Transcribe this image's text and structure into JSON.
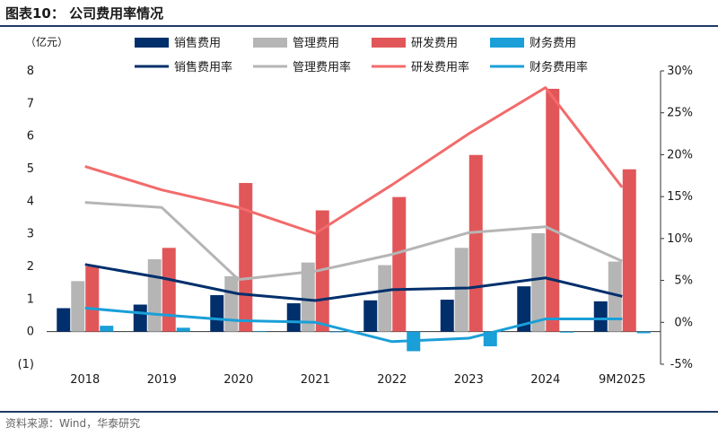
{
  "figure_title": "图表10：  公司费用率情况",
  "source_note": "资料来源：Wind，华泰研究",
  "chart_data": {
    "type": "bar+line",
    "ylabel_left": "（亿元）",
    "categories": [
      "2018",
      "2019",
      "2020",
      "2021",
      "2022",
      "2023",
      "2024",
      "9M2025"
    ],
    "ylim_left": [
      -1,
      8
    ],
    "yticks_left": [
      {
        "value": 8,
        "label": "8"
      },
      {
        "value": 7,
        "label": "7"
      },
      {
        "value": 6,
        "label": "6"
      },
      {
        "value": 5,
        "label": "5"
      },
      {
        "value": 4,
        "label": "4"
      },
      {
        "value": 3,
        "label": "3"
      },
      {
        "value": 2,
        "label": "2"
      },
      {
        "value": 1,
        "label": "1"
      },
      {
        "value": 0,
        "label": "0"
      },
      {
        "value": -1,
        "label": "(1)"
      }
    ],
    "ylim_right": [
      -5,
      30
    ],
    "yticks_right": [
      {
        "value": 30,
        "label": "30%"
      },
      {
        "value": 25,
        "label": "25%"
      },
      {
        "value": 20,
        "label": "20%"
      },
      {
        "value": 15,
        "label": "15%"
      },
      {
        "value": 10,
        "label": "10%"
      },
      {
        "value": 5,
        "label": "5%"
      },
      {
        "value": 0,
        "label": "0%"
      },
      {
        "value": -5,
        "label": "-5%"
      }
    ],
    "bar_series": [
      {
        "name": "销售费用",
        "color": "#002f6c",
        "values": [
          0.72,
          0.83,
          1.12,
          0.87,
          0.96,
          0.98,
          1.39,
          0.93
        ]
      },
      {
        "name": "管理费用",
        "color": "#b5b5b5",
        "values": [
          1.55,
          2.22,
          1.7,
          2.12,
          2.04,
          2.57,
          3.02,
          2.15
        ]
      },
      {
        "name": "研发费用",
        "color": "#e15759",
        "values": [
          2.0,
          2.57,
          4.56,
          3.72,
          4.13,
          5.42,
          7.45,
          4.98
        ]
      },
      {
        "name": "财务费用",
        "color": "#1a9fd8",
        "values": [
          0.18,
          0.12,
          0.02,
          -0.02,
          -0.6,
          -0.45,
          -0.03,
          -0.05
        ]
      }
    ],
    "line_series": [
      {
        "name": "销售费用率",
        "color": "#002f6c",
        "values": [
          6.9,
          5.3,
          3.4,
          2.6,
          3.9,
          4.1,
          5.3,
          3.1
        ]
      },
      {
        "name": "管理费用率",
        "color": "#b5b5b5",
        "values": [
          14.3,
          13.7,
          5.1,
          6.1,
          8.1,
          10.7,
          11.4,
          7.3
        ]
      },
      {
        "name": "研发费用率",
        "color": "#f26b6b",
        "values": [
          18.6,
          15.8,
          13.7,
          10.6,
          16.4,
          22.5,
          28.0,
          16.1
        ]
      },
      {
        "name": "财务费用率",
        "color": "#1a9fd8",
        "values": [
          1.7,
          0.9,
          0.2,
          0.0,
          -2.3,
          -1.9,
          0.4,
          0.4
        ]
      }
    ]
  }
}
